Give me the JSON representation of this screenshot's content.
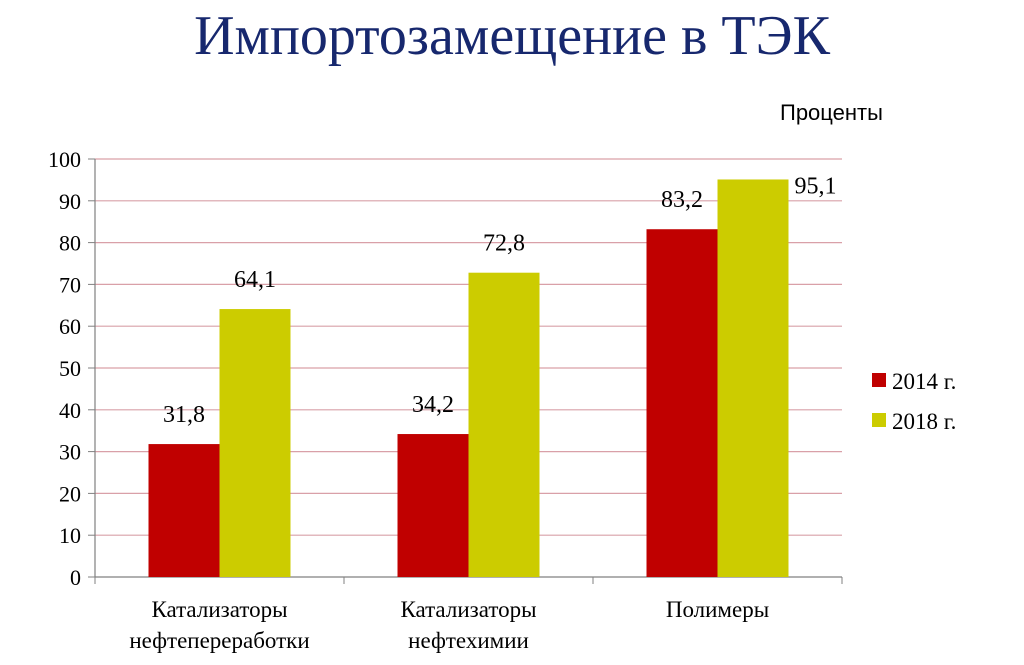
{
  "page": {
    "title": "Импортозамещение в ТЭК",
    "unit_label": "Проценты"
  },
  "chart_data": {
    "type": "bar",
    "title": "Импортозамещение в ТЭК",
    "ylabel": "Проценты",
    "ylim": [
      0,
      100
    ],
    "yticks": [
      0,
      10,
      20,
      30,
      40,
      50,
      60,
      70,
      80,
      90,
      100
    ],
    "grid": true,
    "legend_position": "right",
    "categories": [
      [
        "Катализаторы",
        "нефтепереработки"
      ],
      [
        "Катализаторы",
        "нефтехимии"
      ],
      [
        "Полимеры"
      ]
    ],
    "series": [
      {
        "name": "2014 г.",
        "color": "#c00000",
        "values": [
          31.8,
          34.2,
          83.2
        ],
        "labels": [
          "31,8",
          "34,2",
          "83,2"
        ]
      },
      {
        "name": "2018 г.",
        "color": "#cccc00",
        "values": [
          64.1,
          72.8,
          95.1
        ],
        "labels": [
          "64,1",
          "72,8",
          "95,1"
        ]
      }
    ]
  }
}
